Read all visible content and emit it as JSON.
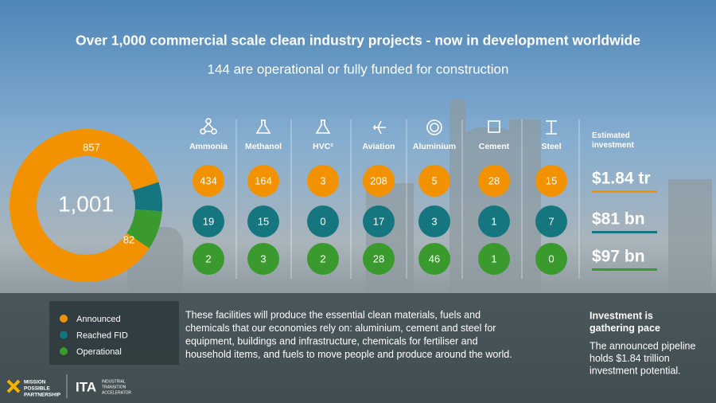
{
  "title": "Over 1,000 commercial scale clean industry projects - now in development worldwide",
  "subtitle": "144 are operational or fully funded for construction",
  "chart_data": {
    "type": "donut",
    "center_label": "1,001",
    "categories": [
      "Announced",
      "Reached FID",
      "Operational"
    ],
    "values": [
      857,
      62,
      82
    ],
    "colors": [
      "#f39200",
      "#15767f",
      "#3a9a2e"
    ]
  },
  "sectors": [
    {
      "name": "Ammonia",
      "values": [
        434,
        19,
        2
      ]
    },
    {
      "name": "Methanol",
      "values": [
        164,
        15,
        3
      ]
    },
    {
      "name": "HVC²",
      "values": [
        3,
        0,
        2
      ]
    },
    {
      "name": "Aviation",
      "values": [
        208,
        17,
        28
      ]
    },
    {
      "name": "Aluminium",
      "values": [
        5,
        3,
        46
      ]
    },
    {
      "name": "Cement",
      "values": [
        28,
        1,
        1
      ]
    },
    {
      "name": "Steel",
      "values": [
        15,
        7,
        0
      ]
    }
  ],
  "investment": {
    "heading": "Estimated investment",
    "values": [
      "$1.84 tr",
      "$81 bn",
      "$97 bn"
    ]
  },
  "body_lines": [
    "These facilities will produce the essential clean materials, fuels and",
    "chemicals that our economies rely on: aluminium, cement and steel for",
    "equipment, buildings and infrastructure, chemicals for fertiliser and",
    "household items, and fuels to move people and produce around the world."
  ],
  "side": {
    "heading_lines": [
      "Investment is",
      "gathering pace"
    ],
    "text_lines": [
      "The announced pipeline",
      "holds $1.84 trillion",
      "investment potential."
    ]
  },
  "logos": {
    "mpp_lines": [
      "MISSION",
      "POSSIBLE",
      "PARTNERSHIP"
    ],
    "ita": "ITA",
    "ita_sub_lines": [
      "INDUSTRIAL",
      "TRANSITION",
      "ACCELERATOR"
    ]
  }
}
